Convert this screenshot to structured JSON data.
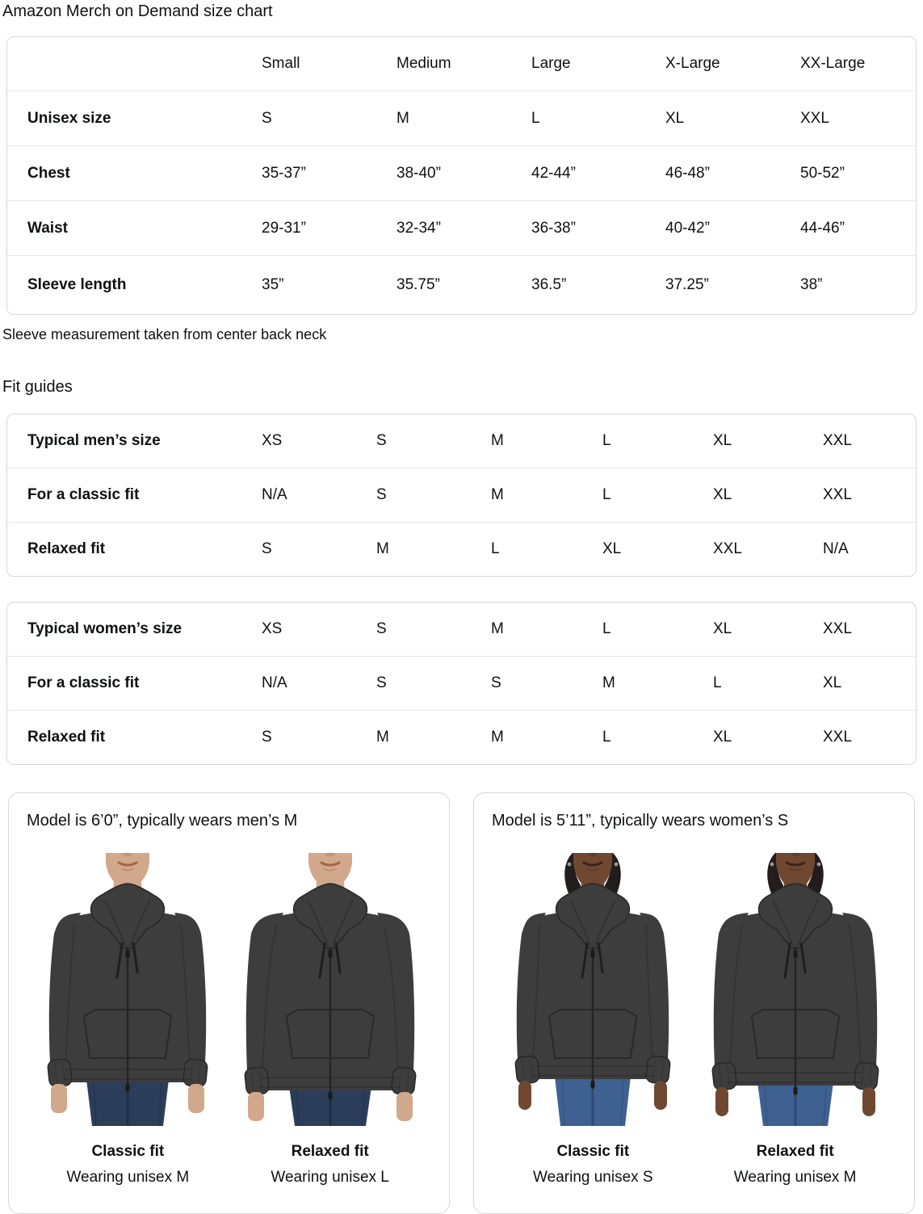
{
  "page": {
    "title": "Amazon Merch on Demand size chart",
    "note": "Sleeve measurement taken from center back neck",
    "fit_guides_heading": "Fit guides"
  },
  "size_chart": {
    "headers": [
      "Small",
      "Medium",
      "Large",
      "X-Large",
      "XX-Large"
    ],
    "rows": [
      {
        "label": "Unisex size",
        "values": [
          "S",
          "M",
          "L",
          "XL",
          "XXL"
        ]
      },
      {
        "label": "Chest",
        "values": [
          "35-37”",
          "38-40”",
          "42-44”",
          "46-48”",
          "50-52”"
        ]
      },
      {
        "label": "Waist",
        "values": [
          "29-31”",
          "32-34”",
          "36-38”",
          "40-42”",
          "44-46”"
        ]
      },
      {
        "label": "Sleeve length",
        "values": [
          "35”",
          "35.75”",
          "36.5”",
          "37.25”",
          "38”"
        ]
      }
    ]
  },
  "fit_guides": {
    "tables": [
      {
        "rows": [
          {
            "label": "Typical men’s size",
            "values": [
              "XS",
              "S",
              "M",
              "L",
              "XL",
              "XXL"
            ]
          },
          {
            "label": "For a classic fit",
            "values": [
              "N/A",
              "S",
              "M",
              "L",
              "XL",
              "XXL"
            ]
          },
          {
            "label": "Relaxed fit",
            "values": [
              "S",
              "M",
              "L",
              "XL",
              "XXL",
              "N/A"
            ]
          }
        ]
      },
      {
        "rows": [
          {
            "label": "Typical women’s size",
            "values": [
              "XS",
              "S",
              "M",
              "L",
              "XL",
              "XXL"
            ]
          },
          {
            "label": "For a classic fit",
            "values": [
              "N/A",
              "S",
              "S",
              "M",
              "L",
              "XL"
            ]
          },
          {
            "label": "Relaxed fit",
            "values": [
              "S",
              "M",
              "M",
              "L",
              "XL",
              "XXL"
            ]
          }
        ]
      }
    ]
  },
  "model_cards": [
    {
      "title": "Model is 6’0”, typically wears men’s M",
      "models": [
        {
          "fit_label": "Classic fit",
          "wearing": "Wearing unisex M",
          "figure": {
            "gender": "male",
            "fit": "classic"
          }
        },
        {
          "fit_label": "Relaxed fit",
          "wearing": "Wearing unisex L",
          "figure": {
            "gender": "male",
            "fit": "relaxed"
          }
        }
      ]
    },
    {
      "title": "Model is 5’11”, typically wears women’s S",
      "models": [
        {
          "fit_label": "Classic fit",
          "wearing": "Wearing unisex S",
          "figure": {
            "gender": "female",
            "fit": "classic"
          }
        },
        {
          "fit_label": "Relaxed fit",
          "wearing": "Wearing unisex M",
          "figure": {
            "gender": "female",
            "fit": "relaxed"
          }
        }
      ]
    }
  ],
  "figure_palettes": {
    "male": {
      "skin": "#d1a88b",
      "skin_shadow": "#ae8065",
      "lips": "#a3664e",
      "hoodie": "#3d3d3d",
      "hoodie_dark": "#262626",
      "jeans": "#2c3d59",
      "jeans_dark": "#1f2e47",
      "hair": null,
      "earring": null
    },
    "female": {
      "skin": "#704832",
      "skin_shadow": "#53321f",
      "lips": "#3e2318",
      "hoodie": "#3d3d3d",
      "hoodie_dark": "#262626",
      "jeans": "#3f6191",
      "jeans_dark": "#2e4a72",
      "hair": "#221d1c",
      "earring": "#999999"
    }
  },
  "colors": {
    "text": "#0f1111",
    "table_border": "#d5d9d9",
    "row_divider": "#e7e7e7",
    "background": "#ffffff"
  }
}
